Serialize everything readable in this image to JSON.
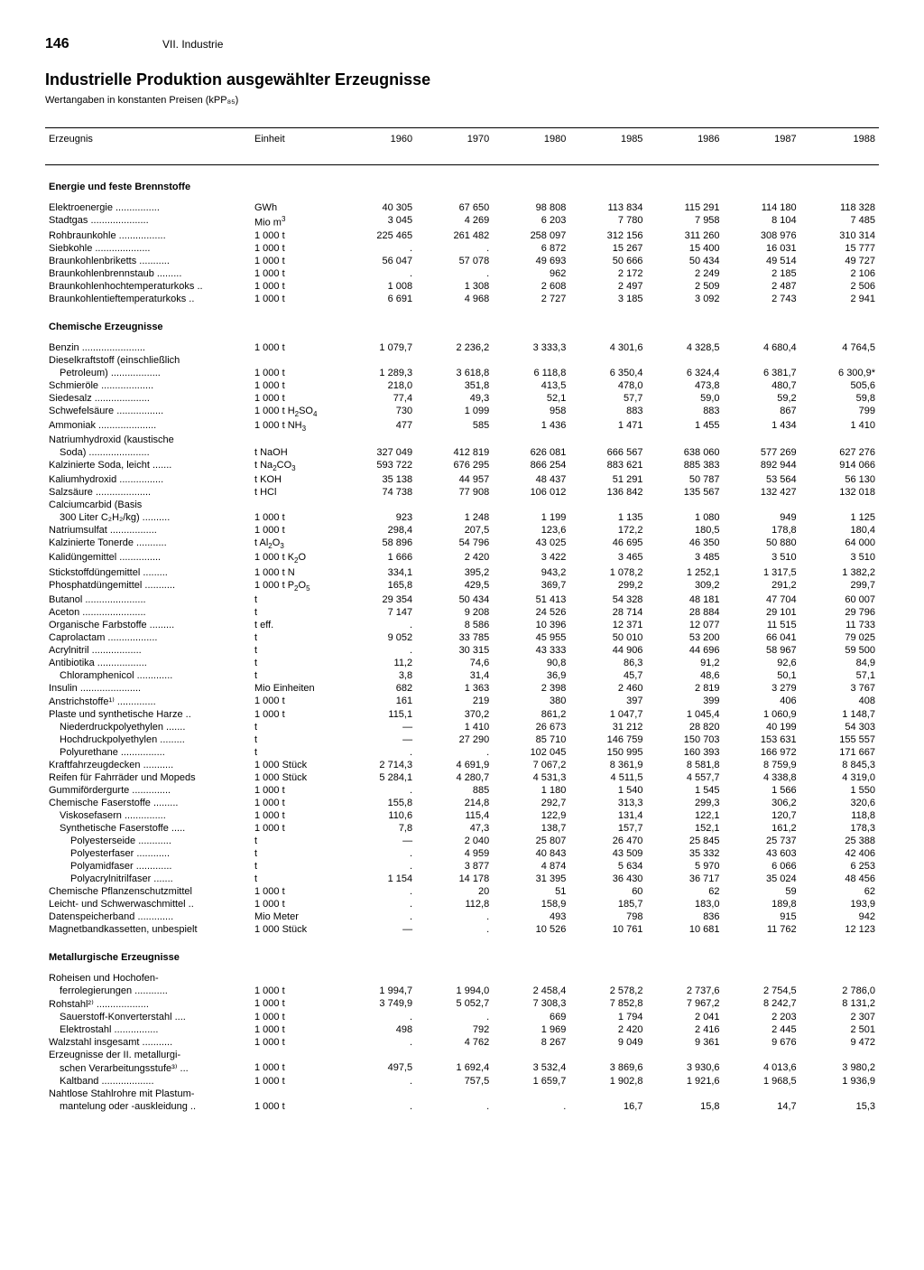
{
  "page_number": "146",
  "section_label": "VII. Industrie",
  "title": "Industrielle Produktion ausgewählter Erzeugnisse",
  "subtitle": "Wertangaben in konstanten Preisen (kPP₈₅)",
  "columns": [
    "Erzeugnis",
    "Einheit",
    "1960",
    "1970",
    "1980",
    "1985",
    "1986",
    "1987",
    "1988"
  ],
  "sections": [
    {
      "heading": "Energie und feste Brennstoffe",
      "rows": [
        {
          "n": "Elektroenergie",
          "u": "GWh",
          "v": [
            "40 305",
            "67 650",
            "98 808",
            "113 834",
            "115 291",
            "114 180",
            "118 328"
          ]
        },
        {
          "n": "Stadtgas",
          "u": "Mio m³",
          "v": [
            "3 045",
            "4 269",
            "6 203",
            "7 780",
            "7 958",
            "8 104",
            "7 485"
          ]
        },
        {
          "n": "Rohbraunkohle",
          "u": "1 000 t",
          "v": [
            "225 465",
            "261 482",
            "258 097",
            "312 156",
            "311 260",
            "308 976",
            "310 314"
          ]
        },
        {
          "n": "Siebkohle",
          "u": "1 000 t",
          "v": [
            ".",
            ".",
            "6 872",
            "15 267",
            "15 400",
            "16 031",
            "15 777"
          ]
        },
        {
          "n": "Braunkohlenbriketts",
          "u": "1 000 t",
          "v": [
            "56 047",
            "57 078",
            "49 693",
            "50 666",
            "50 434",
            "49 514",
            "49 727"
          ]
        },
        {
          "n": "Braunkohlenbrennstaub",
          "u": "1 000 t",
          "v": [
            ".",
            ".",
            "962",
            "2 172",
            "2 249",
            "2 185",
            "2 106"
          ]
        },
        {
          "n": "Braunkohlenhochtemperaturkoks",
          "u": "1 000 t",
          "v": [
            "1 008",
            "1 308",
            "2 608",
            "2 497",
            "2 509",
            "2 487",
            "2 506"
          ]
        },
        {
          "n": "Braunkohlentieftemperaturkoks",
          "u": "1 000 t",
          "v": [
            "6 691",
            "4 968",
            "2 727",
            "3 185",
            "3 092",
            "2 743",
            "2 941"
          ]
        }
      ]
    },
    {
      "heading": "Chemische Erzeugnisse",
      "rows": [
        {
          "n": "Benzin",
          "u": "1 000 t",
          "v": [
            "1 079,7",
            "2 236,2",
            "3 333,3",
            "4 301,6",
            "4 328,5",
            "4 680,4",
            "4 764,5"
          ]
        },
        {
          "n": "Dieselkraftstoff (einschließlich",
          "u": "",
          "v": [
            "",
            "",
            "",
            "",
            "",
            "",
            ""
          ]
        },
        {
          "n": "Petroleum)",
          "u": "1 000 t",
          "v": [
            "1 289,3",
            "3 618,8",
            "6 118,8",
            "6 350,4",
            "6 324,4",
            "6 381,7",
            "6 300,9*"
          ],
          "indent": 1
        },
        {
          "n": "Schmieröle",
          "u": "1 000 t",
          "v": [
            "218,0",
            "351,8",
            "413,5",
            "478,0",
            "473,8",
            "480,7",
            "505,6"
          ]
        },
        {
          "n": "Siedesalz",
          "u": "1 000 t",
          "v": [
            "77,4",
            "49,3",
            "52,1",
            "57,7",
            "59,0",
            "59,2",
            "59,8"
          ]
        },
        {
          "n": "Schwefelsäure",
          "u": "1 000 t H₂SO₄",
          "v": [
            "730",
            "1 099",
            "958",
            "883",
            "883",
            "867",
            "799"
          ]
        },
        {
          "n": "Ammoniak",
          "u": "1 000 t NH₃",
          "v": [
            "477",
            "585",
            "1 436",
            "1 471",
            "1 455",
            "1 434",
            "1 410"
          ]
        },
        {
          "n": "Natriumhydroxid (kaustische",
          "u": "",
          "v": [
            "",
            "",
            "",
            "",
            "",
            "",
            ""
          ]
        },
        {
          "n": "Soda)",
          "u": "t NaOH",
          "v": [
            "327 049",
            "412 819",
            "626 081",
            "666 567",
            "638 060",
            "577 269",
            "627 276"
          ],
          "indent": 1
        },
        {
          "n": "Kalzinierte Soda, leicht",
          "u": "t Na₂CO₃",
          "v": [
            "593 722",
            "676 295",
            "866 254",
            "883 621",
            "885 383",
            "892 944",
            "914 066"
          ]
        },
        {
          "n": "Kaliumhydroxid",
          "u": "t KOH",
          "v": [
            "35 138",
            "44 957",
            "48 437",
            "51 291",
            "50 787",
            "53 564",
            "56 130"
          ]
        },
        {
          "n": "Salzsäure",
          "u": "t HCl",
          "v": [
            "74 738",
            "77 908",
            "106 012",
            "136 842",
            "135 567",
            "132 427",
            "132 018"
          ]
        },
        {
          "n": "Calciumcarbid (Basis",
          "u": "",
          "v": [
            "",
            "",
            "",
            "",
            "",
            "",
            ""
          ]
        },
        {
          "n": "300 Liter C₂H₂/kg)",
          "u": "1 000 t",
          "v": [
            "923",
            "1 248",
            "1 199",
            "1 135",
            "1 080",
            "949",
            "1 125"
          ],
          "indent": 1
        },
        {
          "n": "Natriumsulfat",
          "u": "1 000 t",
          "v": [
            "298,4",
            "207,5",
            "123,6",
            "172,2",
            "180,5",
            "178,8",
            "180,4"
          ]
        },
        {
          "n": "Kalzinierte Tonerde",
          "u": "t Al₂O₃",
          "v": [
            "58 896",
            "54 796",
            "43 025",
            "46 695",
            "46 350",
            "50 880",
            "64 000"
          ]
        },
        {
          "n": "Kalidüngemittel",
          "u": "1 000 t K₂O",
          "v": [
            "1 666",
            "2 420",
            "3 422",
            "3 465",
            "3 485",
            "3 510",
            "3 510"
          ]
        },
        {
          "n": "Stickstoffdüngemittel",
          "u": "1 000 t N",
          "v": [
            "334,1",
            "395,2",
            "943,2",
            "1 078,2",
            "1 252,1",
            "1 317,5",
            "1 382,2"
          ]
        },
        {
          "n": "Phosphatdüngemittel",
          "u": "1 000 t P₂O₅",
          "v": [
            "165,8",
            "429,5",
            "369,7",
            "299,2",
            "309,2",
            "291,2",
            "299,7"
          ]
        },
        {
          "n": "Butanol",
          "u": "t",
          "v": [
            "29 354",
            "50 434",
            "51 413",
            "54 328",
            "48 181",
            "47 704",
            "60 007"
          ]
        },
        {
          "n": "Aceton",
          "u": "t",
          "v": [
            "7 147",
            "9 208",
            "24 526",
            "28 714",
            "28 884",
            "29 101",
            "29 796"
          ]
        },
        {
          "n": "Organische Farbstoffe",
          "u": "t eff.",
          "v": [
            ".",
            "8 586",
            "10 396",
            "12 371",
            "12 077",
            "11 515",
            "11 733"
          ]
        },
        {
          "n": "Caprolactam",
          "u": "t",
          "v": [
            "9 052",
            "33 785",
            "45 955",
            "50 010",
            "53 200",
            "66 041",
            "79 025"
          ]
        },
        {
          "n": "Acrylnitril",
          "u": "t",
          "v": [
            ".",
            "30 315",
            "43 333",
            "44 906",
            "44 696",
            "58 967",
            "59 500"
          ]
        },
        {
          "n": "Antibiotika",
          "u": "t",
          "v": [
            "11,2",
            "74,6",
            "90,8",
            "86,3",
            "91,2",
            "92,6",
            "84,9"
          ]
        },
        {
          "n": "Chloramphenicol",
          "u": "t",
          "v": [
            "3,8",
            "31,4",
            "36,9",
            "45,7",
            "48,6",
            "50,1",
            "57,1"
          ],
          "indent": 1
        },
        {
          "n": "Insulin",
          "u": "Mio Einheiten",
          "v": [
            "682",
            "1 363",
            "2 398",
            "2 460",
            "2 819",
            "3 279",
            "3 767"
          ]
        },
        {
          "n": "Anstrichstoffe¹⁾",
          "u": "1 000 t",
          "v": [
            "161",
            "219",
            "380",
            "397",
            "399",
            "406",
            "408"
          ]
        },
        {
          "n": "Plaste und synthetische Harze",
          "u": "1 000 t",
          "v": [
            "115,1",
            "370,2",
            "861,2",
            "1 047,7",
            "1 045,4",
            "1 060,9",
            "1 148,7"
          ]
        },
        {
          "n": "Niederdruckpolyethylen",
          "u": "t",
          "v": [
            "—",
            "1 410",
            "26 673",
            "31 212",
            "28 820",
            "40 199",
            "54 303"
          ],
          "indent": 1
        },
        {
          "n": "Hochdruckpolyethylen",
          "u": "t",
          "v": [
            "—",
            "27 290",
            "85 710",
            "146 759",
            "150 703",
            "153 631",
            "155 557"
          ],
          "indent": 1
        },
        {
          "n": "Polyurethane",
          "u": "t",
          "v": [
            ".",
            ".",
            "102 045",
            "150 995",
            "160 393",
            "166 972",
            "171 667"
          ],
          "indent": 1
        },
        {
          "n": "Kraftfahrzeugdecken",
          "u": "1 000 Stück",
          "v": [
            "2 714,3",
            "4 691,9",
            "7 067,2",
            "8 361,9",
            "8 581,8",
            "8 759,9",
            "8 845,3"
          ]
        },
        {
          "n": "Reifen für Fahrräder und Mopeds",
          "u": "1 000 Stück",
          "v": [
            "5 284,1",
            "4 280,7",
            "4 531,3",
            "4 511,5",
            "4 557,7",
            "4 338,8",
            "4 319,0"
          ]
        },
        {
          "n": "Gummifördergurte",
          "u": "1 000 t",
          "v": [
            ".",
            "885",
            "1 180",
            "1 540",
            "1 545",
            "1 566",
            "1 550"
          ]
        },
        {
          "n": "Chemische Faserstoffe",
          "u": "1 000 t",
          "v": [
            "155,8",
            "214,8",
            "292,7",
            "313,3",
            "299,3",
            "306,2",
            "320,6"
          ]
        },
        {
          "n": "Viskosefasern",
          "u": "1 000 t",
          "v": [
            "110,6",
            "115,4",
            "122,9",
            "131,4",
            "122,1",
            "120,7",
            "118,8"
          ],
          "indent": 1
        },
        {
          "n": "Synthetische Faserstoffe",
          "u": "1 000 t",
          "v": [
            "7,8",
            "47,3",
            "138,7",
            "157,7",
            "152,1",
            "161,2",
            "178,3"
          ],
          "indent": 1
        },
        {
          "n": "Polyesterseide",
          "u": "t",
          "v": [
            "—",
            "2 040",
            "25 807",
            "26 470",
            "25 845",
            "25 737",
            "25 388"
          ],
          "indent": 2
        },
        {
          "n": "Polyesterfaser",
          "u": "t",
          "v": [
            ".",
            "4 959",
            "40 843",
            "43 509",
            "35 332",
            "43 603",
            "42 406"
          ],
          "indent": 2
        },
        {
          "n": "Polyamidfaser",
          "u": "t",
          "v": [
            ".",
            "3 877",
            "4 874",
            "5 634",
            "5 970",
            "6 066",
            "6 253"
          ],
          "indent": 2
        },
        {
          "n": "Polyacrylnitrilfaser",
          "u": "t",
          "v": [
            "1 154",
            "14 178",
            "31 395",
            "36 430",
            "36 717",
            "35 024",
            "48 456"
          ],
          "indent": 2
        },
        {
          "n": "Chemische Pflanzenschutzmittel",
          "u": "1 000 t",
          "v": [
            ".",
            "20",
            "51",
            "60",
            "62",
            "59",
            "62"
          ]
        },
        {
          "n": "Leicht- und Schwerwaschmittel",
          "u": "1 000 t",
          "v": [
            ".",
            "112,8",
            "158,9",
            "185,7",
            "183,0",
            "189,8",
            "193,9"
          ]
        },
        {
          "n": "Datenspeicherband",
          "u": "Mio Meter",
          "v": [
            ".",
            ".",
            "493",
            "798",
            "836",
            "915",
            "942"
          ]
        },
        {
          "n": "Magnetbandkassetten, unbespielt",
          "u": "1 000 Stück",
          "v": [
            "—",
            ".",
            "10 526",
            "10 761",
            "10 681",
            "11 762",
            "12 123"
          ]
        }
      ]
    },
    {
      "heading": "Metallurgische Erzeugnisse",
      "rows": [
        {
          "n": "Roheisen und Hochofen-",
          "u": "",
          "v": [
            "",
            "",
            "",
            "",
            "",
            "",
            ""
          ]
        },
        {
          "n": "ferrolegierungen",
          "u": "1 000 t",
          "v": [
            "1 994,7",
            "1 994,0",
            "2 458,4",
            "2 578,2",
            "2 737,6",
            "2 754,5",
            "2 786,0"
          ],
          "indent": 1
        },
        {
          "n": "Rohstahl²⁾",
          "u": "1 000 t",
          "v": [
            "3 749,9",
            "5 052,7",
            "7 308,3",
            "7 852,8",
            "7 967,2",
            "8 242,7",
            "8 131,2"
          ]
        },
        {
          "n": "Sauerstoff-Konverterstahl",
          "u": "1 000 t",
          "v": [
            ".",
            ".",
            "669",
            "1 794",
            "2 041",
            "2 203",
            "2 307"
          ],
          "indent": 1
        },
        {
          "n": "Elektrostahl",
          "u": "1 000 t",
          "v": [
            "498",
            "792",
            "1 969",
            "2 420",
            "2 416",
            "2 445",
            "2 501"
          ],
          "indent": 1
        },
        {
          "n": "Walzstahl insgesamt",
          "u": "1 000 t",
          "v": [
            ".",
            "4 762",
            "8 267",
            "9 049",
            "9 361",
            "9 676",
            "9 472"
          ]
        },
        {
          "n": "Erzeugnisse der II. metallurgi-",
          "u": "",
          "v": [
            "",
            "",
            "",
            "",
            "",
            "",
            ""
          ]
        },
        {
          "n": "schen Verarbeitungsstufe³⁾",
          "u": "1 000 t",
          "v": [
            "497,5",
            "1 692,4",
            "3 532,4",
            "3 869,6",
            "3 930,6",
            "4 013,6",
            "3 980,2"
          ],
          "indent": 1
        },
        {
          "n": "Kaltband",
          "u": "1 000 t",
          "v": [
            ".",
            "757,5",
            "1 659,7",
            "1 902,8",
            "1 921,6",
            "1 968,5",
            "1 936,9"
          ],
          "indent": 1
        },
        {
          "n": "Nahtlose Stahlrohre mit Plastum-",
          "u": "",
          "v": [
            "",
            "",
            "",
            "",
            "",
            "",
            ""
          ]
        },
        {
          "n": "mantelung oder -auskleidung",
          "u": "1 000 t",
          "v": [
            ".",
            ".",
            ".",
            "16,7",
            "15,8",
            "14,7",
            "15,3"
          ],
          "indent": 1
        }
      ]
    }
  ]
}
